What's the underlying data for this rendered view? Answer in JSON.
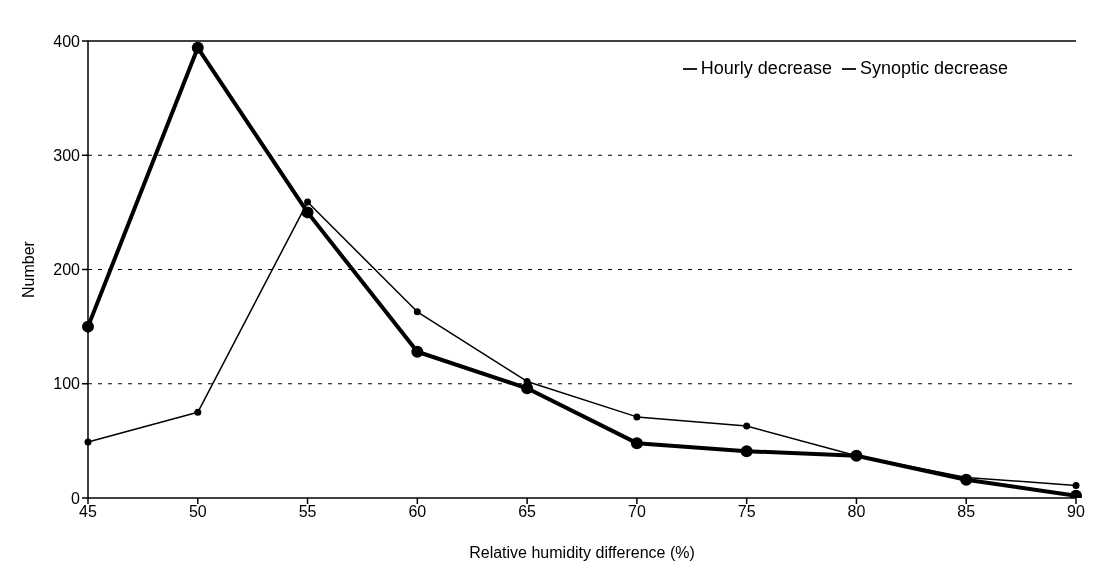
{
  "chart_data": {
    "type": "line",
    "xlabel": "Relative humidity difference (%)",
    "ylabel": "Number",
    "categories": [
      "45",
      "50",
      "55",
      "60",
      "65",
      "70",
      "75",
      "80",
      "85",
      "90"
    ],
    "series": [
      {
        "name": "Hourly decrease",
        "color": "#000000",
        "values": [
          150,
          394,
          250,
          128,
          96,
          48,
          41,
          37,
          16,
          2
        ]
      },
      {
        "name": "Synoptic decrease",
        "color": "#000000",
        "values": [
          49,
          75,
          259,
          163,
          102,
          71,
          63,
          37,
          18,
          11
        ]
      }
    ],
    "ylim": [
      0,
      400
    ],
    "yticks": [
      0,
      100,
      200,
      300,
      400
    ],
    "grid": "y",
    "legend": "top right",
    "marker": "circle",
    "line_style": "solid"
  }
}
